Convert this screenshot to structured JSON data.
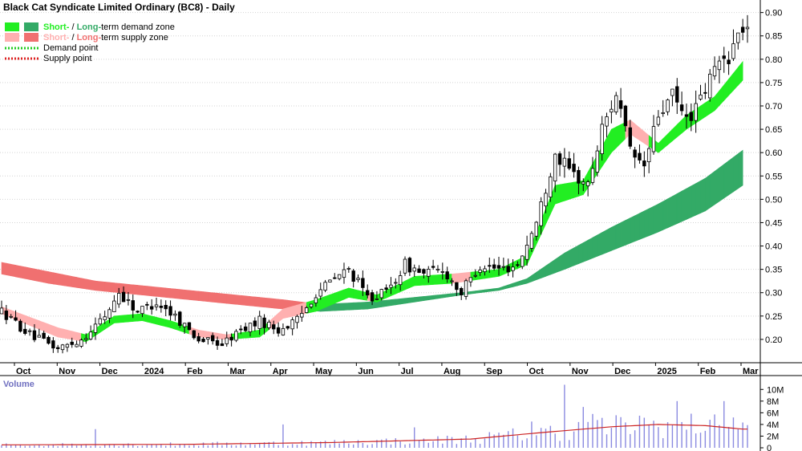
{
  "chart_data": {
    "type": "candlestick",
    "title": "Black Cat Syndicate Limited Ordinary (BC8) - Daily",
    "legend": [
      {
        "label_parts": [
          "Short-",
          " / ",
          "Long-",
          "term demand zone"
        ],
        "colors": [
          "#22ee22",
          "#33aa66"
        ],
        "kind": "zone"
      },
      {
        "label_parts": [
          "Short-",
          " / ",
          "Long-",
          "term supply zone"
        ],
        "colors": [
          "#ffb0b0",
          "#f07070"
        ],
        "kind": "zone"
      },
      {
        "label": "Demand point",
        "color": "#22cc22",
        "kind": "dotted"
      },
      {
        "label": "Supply point",
        "color": "#dd2222",
        "kind": "dotted"
      }
    ],
    "x_labels": [
      "Oct",
      "Nov",
      "Dec",
      "2024",
      "Feb",
      "Mar",
      "Apr",
      "May",
      "Jun",
      "Jul",
      "Aug",
      "Sep",
      "Oct",
      "Nov",
      "Dec",
      "2025",
      "Feb",
      "Mar"
    ],
    "y_ticks": [
      "0.90",
      "0.85",
      "0.80",
      "0.75",
      "0.70",
      "0.65",
      "0.60",
      "0.55",
      "0.50",
      "0.45",
      "0.40",
      "0.35",
      "0.30",
      "0.25",
      "0.20"
    ],
    "y_range": [
      0.15,
      0.92
    ],
    "price_path": [
      [
        0,
        0.26
      ],
      [
        6,
        0.21
      ],
      [
        12,
        0.18
      ],
      [
        17,
        0.2
      ],
      [
        22,
        0.25
      ],
      [
        25,
        0.3
      ],
      [
        29,
        0.26
      ],
      [
        33,
        0.28
      ],
      [
        37,
        0.25
      ],
      [
        42,
        0.2
      ],
      [
        47,
        0.19
      ],
      [
        51,
        0.22
      ],
      [
        55,
        0.24
      ],
      [
        59,
        0.22
      ],
      [
        63,
        0.24
      ],
      [
        67,
        0.3
      ],
      [
        71,
        0.33
      ],
      [
        74,
        0.35
      ],
      [
        78,
        0.29
      ],
      [
        82,
        0.3
      ],
      [
        86,
        0.36
      ],
      [
        90,
        0.34
      ],
      [
        94,
        0.35
      ],
      [
        98,
        0.3
      ],
      [
        102,
        0.36
      ],
      [
        106,
        0.35
      ],
      [
        110,
        0.36
      ],
      [
        114,
        0.45
      ],
      [
        118,
        0.6
      ],
      [
        121,
        0.56
      ],
      [
        125,
        0.53
      ],
      [
        128,
        0.65
      ],
      [
        131,
        0.73
      ],
      [
        134,
        0.6
      ],
      [
        137,
        0.57
      ],
      [
        140,
        0.68
      ],
      [
        143,
        0.72
      ],
      [
        146,
        0.67
      ],
      [
        149,
        0.71
      ],
      [
        152,
        0.78
      ],
      [
        155,
        0.81
      ],
      [
        158,
        0.87
      ]
    ],
    "short_term_zone": [
      [
        0,
        0.27,
        0.255
      ],
      [
        12,
        0.225,
        0.205
      ],
      [
        18,
        0.21,
        0.195
      ],
      [
        24,
        0.25,
        0.235
      ],
      [
        30,
        0.255,
        0.24
      ],
      [
        36,
        0.24,
        0.225
      ],
      [
        42,
        0.22,
        0.205
      ],
      [
        48,
        0.21,
        0.2
      ],
      [
        55,
        0.22,
        0.205
      ],
      [
        60,
        0.265,
        0.245
      ],
      [
        67,
        0.285,
        0.26
      ],
      [
        74,
        0.31,
        0.29
      ],
      [
        80,
        0.295,
        0.28
      ],
      [
        88,
        0.335,
        0.315
      ],
      [
        96,
        0.34,
        0.32
      ],
      [
        106,
        0.35,
        0.335
      ],
      [
        112,
        0.38,
        0.36
      ],
      [
        118,
        0.53,
        0.49
      ],
      [
        124,
        0.54,
        0.51
      ],
      [
        130,
        0.65,
        0.6
      ],
      [
        134,
        0.67,
        0.64
      ],
      [
        140,
        0.62,
        0.6
      ],
      [
        146,
        0.68,
        0.65
      ],
      [
        152,
        0.72,
        0.69
      ],
      [
        158,
        0.795,
        0.755
      ]
    ],
    "long_term_zone": [
      [
        0,
        0.365,
        0.34
      ],
      [
        10,
        0.345,
        0.32
      ],
      [
        20,
        0.325,
        0.305
      ],
      [
        30,
        0.315,
        0.295
      ],
      [
        40,
        0.305,
        0.285
      ],
      [
        50,
        0.295,
        0.275
      ],
      [
        60,
        0.285,
        0.265
      ],
      [
        68,
        0.275,
        0.26
      ],
      [
        78,
        0.28,
        0.265
      ],
      [
        88,
        0.29,
        0.28
      ],
      [
        98,
        0.3,
        0.295
      ],
      [
        106,
        0.31,
        0.305
      ],
      [
        112,
        0.33,
        0.32
      ],
      [
        120,
        0.385,
        0.35
      ],
      [
        130,
        0.44,
        0.39
      ],
      [
        140,
        0.49,
        0.43
      ],
      [
        150,
        0.545,
        0.475
      ],
      [
        158,
        0.605,
        0.53
      ]
    ],
    "volume": {
      "label": "Volume",
      "ticks": [
        "10M",
        "8M",
        "6M",
        "4M",
        "2M",
        "0"
      ],
      "max": 11,
      "ma_path": [
        [
          0,
          0.5
        ],
        [
          40,
          0.6
        ],
        [
          70,
          0.9
        ],
        [
          100,
          1.5
        ],
        [
          115,
          2.6
        ],
        [
          130,
          3.6
        ],
        [
          140,
          4.0
        ],
        [
          150,
          3.8
        ],
        [
          158,
          3.2
        ]
      ],
      "spikes": [
        [
          20,
          3.2
        ],
        [
          60,
          4.0
        ],
        [
          88,
          3.5
        ],
        [
          113,
          4.5
        ],
        [
          120,
          10.8
        ],
        [
          124,
          7.0
        ],
        [
          126,
          5.8
        ],
        [
          136,
          5.5
        ],
        [
          144,
          8.0
        ],
        [
          151,
          4.8
        ],
        [
          154,
          8.0
        ],
        [
          156,
          5.2
        ]
      ]
    }
  }
}
